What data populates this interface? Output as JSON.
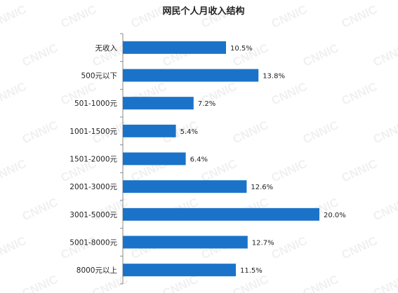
{
  "watermark": "CNNIC",
  "chart_data": {
    "type": "bar",
    "orientation": "horizontal",
    "title": "网民个人月收入结构",
    "categories": [
      "无收入",
      "500元以下",
      "501-1000元",
      "1001-1500元",
      "1501-2000元",
      "2001-3000元",
      "3001-5000元",
      "5001-8000元",
      "8000元以上"
    ],
    "values": [
      10.5,
      13.8,
      7.2,
      5.4,
      6.4,
      12.6,
      20.0,
      12.7,
      11.5
    ],
    "value_labels": [
      "10.5%",
      "13.8%",
      "7.2%",
      "5.4%",
      "6.4%",
      "12.6%",
      "20.0%",
      "12.7%",
      "11.5%"
    ],
    "xlim": [
      0,
      20
    ],
    "bar_color": "#1a73c8",
    "grid": false,
    "legend": "none"
  }
}
